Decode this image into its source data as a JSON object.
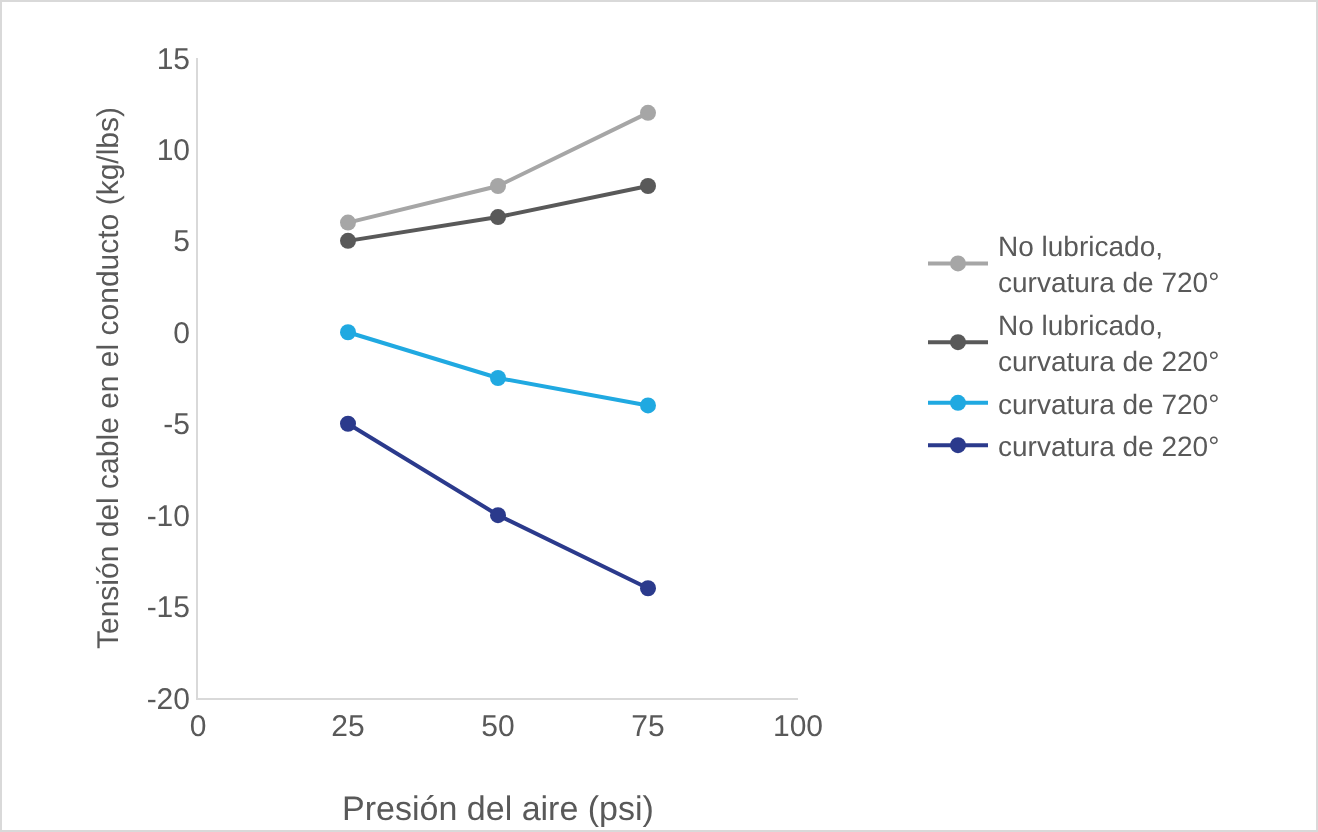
{
  "chart_data": {
    "type": "line",
    "xlabel": "Presión del aire (psi)",
    "ylabel": "Tensión del cable en el conducto (kg/lbs)",
    "x": [
      25,
      50,
      75
    ],
    "series": [
      {
        "name": "No lubricado, curvatura de 720°",
        "color": "#a6a6a6",
        "values": [
          6,
          8,
          12
        ]
      },
      {
        "name": "No lubricado, curvatura de 220°",
        "color": "#595959",
        "values": [
          5,
          6.3,
          8
        ]
      },
      {
        "name": "curvatura de 720°",
        "color": "#20a9e1",
        "values": [
          0,
          -2.5,
          -4
        ]
      },
      {
        "name": "curvatura de 220°",
        "color": "#2b3a8c",
        "values": [
          -5,
          -10,
          -14
        ]
      }
    ],
    "xlim": [
      0,
      100
    ],
    "xticks": [
      0,
      25,
      50,
      75,
      100
    ],
    "ylim": [
      -20,
      15
    ],
    "yticks": [
      -20,
      -15,
      -10,
      -5,
      0,
      5,
      10,
      15
    ],
    "grid": false,
    "legend": "right",
    "marker": "circle",
    "line_style": "solid"
  }
}
